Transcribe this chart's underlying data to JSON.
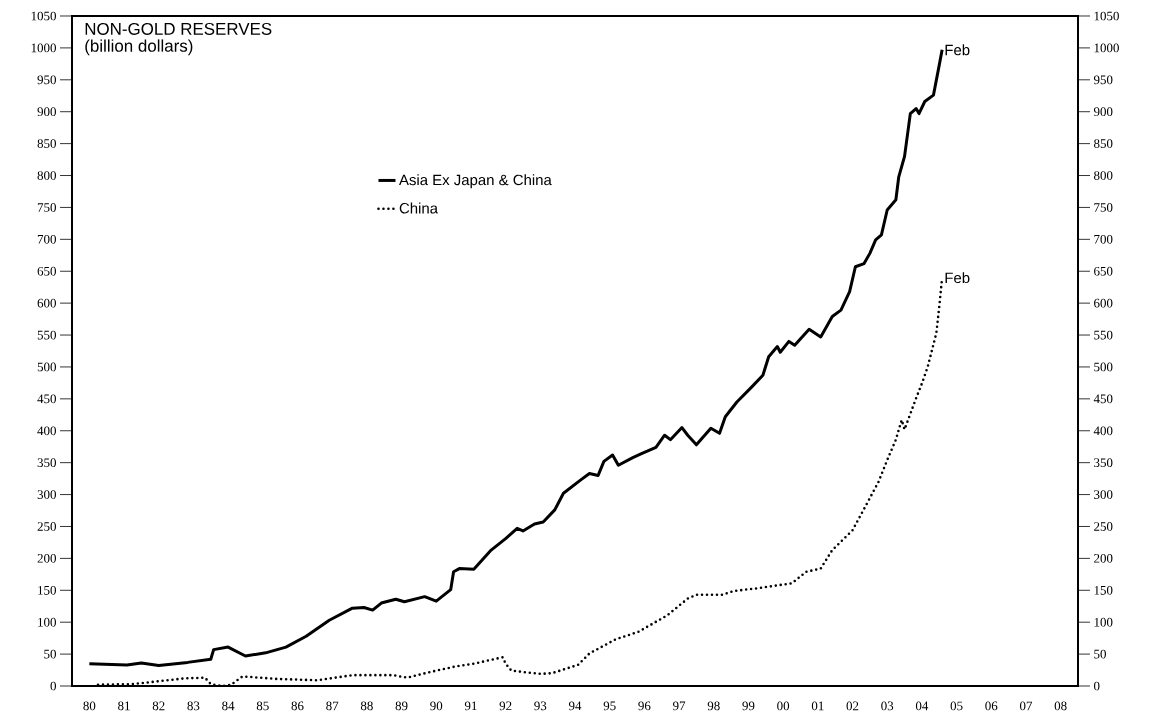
{
  "chart_data": {
    "type": "line",
    "title": "NON-GOLD RESERVES",
    "subtitle": "(billion dollars)",
    "xlim": [
      "1980-01",
      "2009-01"
    ],
    "ylim": [
      0,
      1050
    ],
    "y2lim": [
      0,
      1050
    ],
    "xticks": [
      {
        "value": "1980-07",
        "label": "80"
      },
      {
        "value": "1981-07",
        "label": "81"
      },
      {
        "value": "1982-07",
        "label": "82"
      },
      {
        "value": "1983-07",
        "label": "83"
      },
      {
        "value": "1984-07",
        "label": "84"
      },
      {
        "value": "1985-07",
        "label": "85"
      },
      {
        "value": "1986-07",
        "label": "86"
      },
      {
        "value": "1987-07",
        "label": "87"
      },
      {
        "value": "1988-07",
        "label": "88"
      },
      {
        "value": "1989-07",
        "label": "89"
      },
      {
        "value": "1990-07",
        "label": "90"
      },
      {
        "value": "1991-07",
        "label": "91"
      },
      {
        "value": "1992-07",
        "label": "92"
      },
      {
        "value": "1993-07",
        "label": "93"
      },
      {
        "value": "1994-07",
        "label": "94"
      },
      {
        "value": "1995-07",
        "label": "95"
      },
      {
        "value": "1996-07",
        "label": "96"
      },
      {
        "value": "1997-07",
        "label": "97"
      },
      {
        "value": "1998-07",
        "label": "98"
      },
      {
        "value": "1999-07",
        "label": "99"
      },
      {
        "value": "2000-07",
        "label": "00"
      },
      {
        "value": "2001-07",
        "label": "01"
      },
      {
        "value": "2002-07",
        "label": "02"
      },
      {
        "value": "2003-07",
        "label": "03"
      },
      {
        "value": "2004-07",
        "label": "04"
      },
      {
        "value": "2005-07",
        "label": "05"
      },
      {
        "value": "2006-07",
        "label": "06"
      },
      {
        "value": "2007-07",
        "label": "07"
      },
      {
        "value": "2008-07",
        "label": "08"
      }
    ],
    "yticks": [
      0,
      50,
      100,
      150,
      200,
      250,
      300,
      350,
      400,
      450,
      500,
      550,
      600,
      650,
      700,
      750,
      800,
      850,
      900,
      950,
      1000,
      1050
    ],
    "y2ticks": [
      0,
      50,
      100,
      150,
      200,
      250,
      300,
      350,
      400,
      450,
      500,
      550,
      600,
      650,
      700,
      750,
      800,
      850,
      900,
      950,
      1000,
      1050
    ],
    "grid": false,
    "legend": "top left",
    "marker": "none",
    "series": [
      {
        "name": "Asia Ex Japan & China",
        "color": "#000000",
        "line_style": "solid",
        "x": [
          "1980-07",
          "1981-08",
          "1982-01",
          "1982-07",
          "1983-05",
          "1984-01",
          "1984-02",
          "1984-07",
          "1985-01",
          "1985-08",
          "1986-03",
          "1986-10",
          "1987-06",
          "1988-02",
          "1988-06",
          "1988-09",
          "1988-12",
          "1989-05",
          "1989-08",
          "1990-03",
          "1990-07",
          "1990-12",
          "1991-01",
          "1991-03",
          "1991-08",
          "1992-02",
          "1992-07",
          "1992-11",
          "1993-01",
          "1993-05",
          "1993-08",
          "1993-12",
          "1994-03",
          "1994-09",
          "1994-12",
          "1995-03",
          "1995-05",
          "1995-08",
          "1995-10",
          "1996-03",
          "1996-06",
          "1996-11",
          "1997-02",
          "1997-04",
          "1997-08",
          "1997-10",
          "1998-01",
          "1998-06",
          "1998-09",
          "1998-11",
          "1999-03",
          "1999-08",
          "1999-12",
          "2000-02",
          "2000-05",
          "2000-06",
          "2000-09",
          "2000-11",
          "2001-04",
          "2001-08",
          "2001-12",
          "2002-03",
          "2002-06",
          "2002-08",
          "2002-11",
          "2003-01",
          "2003-03",
          "2003-05",
          "2003-07",
          "2003-10",
          "2003-11",
          "2004-01",
          "2004-03",
          "2004-05",
          "2004-06",
          "2004-08",
          "2004-11",
          "2005-01",
          "2005-02"
        ],
        "values": [
          35,
          33,
          36,
          32,
          37,
          42,
          57,
          61,
          47,
          52,
          61,
          78,
          103,
          122,
          123,
          119,
          130,
          136,
          132,
          140,
          133,
          151,
          179,
          184,
          183,
          213,
          231,
          247,
          243,
          254,
          257,
          276,
          302,
          323,
          333,
          330,
          352,
          362,
          346,
          358,
          364,
          374,
          393,
          386,
          405,
          393,
          378,
          404,
          396,
          422,
          445,
          468,
          487,
          516,
          532,
          523,
          540,
          534,
          559,
          547,
          579,
          589,
          618,
          657,
          662,
          678,
          699,
          707,
          746,
          762,
          798,
          830,
          897,
          905,
          897,
          916,
          926,
          973,
          997
        ]
      },
      {
        "name": "China",
        "color": "#000000",
        "line_style": "dotted",
        "x": [
          "1980-10",
          "1981-10",
          "1982-06",
          "1983-04",
          "1983-11",
          "1984-01",
          "1984-05",
          "1984-08",
          "1984-12",
          "1985-12",
          "1987-02",
          "1988-02",
          "1989-04",
          "1989-09",
          "1990-04",
          "1990-08",
          "1991-02",
          "1991-08",
          "1992-06",
          "1992-07",
          "1992-09",
          "1993-07",
          "1993-11",
          "1994-08",
          "1994-12",
          "1995-09",
          "1996-05",
          "1997-03",
          "1997-10",
          "1998-01",
          "1998-10",
          "1999-02",
          "1999-10",
          "2000-10",
          "2001-03",
          "2001-08",
          "2001-12",
          "2002-07",
          "2002-12",
          "2003-04",
          "2003-07",
          "2003-10",
          "2003-12",
          "2004-01",
          "2004-05",
          "2004-07",
          "2004-09",
          "2004-12",
          "2005-01",
          "2005-02"
        ],
        "values": [
          2,
          3,
          7,
          12,
          13,
          3,
          0,
          2,
          15,
          11,
          9,
          17,
          17,
          13,
          21,
          25,
          31,
          35,
          45,
          35,
          24,
          19,
          20,
          33,
          51,
          73,
          85,
          111,
          137,
          143,
          143,
          149,
          153,
          161,
          179,
          184,
          213,
          244,
          286,
          320,
          354,
          386,
          417,
          402,
          451,
          474,
          500,
          553,
          594,
          640
        ]
      }
    ],
    "annotations": [
      {
        "text": "Feb",
        "x": "2005-02",
        "y": 997
      },
      {
        "text": "Feb",
        "x": "2005-02",
        "y": 640
      }
    ]
  }
}
